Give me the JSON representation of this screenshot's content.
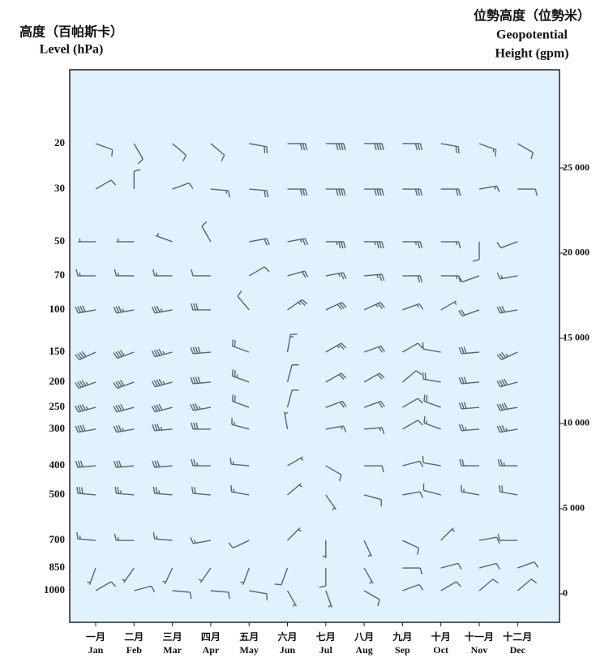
{
  "chart_data": {
    "type": "wind-barb",
    "left_title": [
      "高度（百帕斯卡）",
      "Level (hPa)"
    ],
    "right_title": [
      "位勢高度（位勢米）",
      "Geopotential",
      "Height (gpm)"
    ],
    "categories": [
      "Jan",
      "Feb",
      "Mar",
      "Apr",
      "May",
      "Jun",
      "Jul",
      "Aug",
      "Sep",
      "Oct",
      "Nov",
      "Dec"
    ],
    "categories_zh": [
      "一月",
      "二月",
      "三月",
      "四月",
      "五月",
      "六月",
      "七月",
      "八月",
      "九月",
      "十月",
      "十一月",
      "十二月"
    ],
    "ylim": [
      -1667,
      30762
    ],
    "y2ticks": [
      0,
      {
        "value": 5000,
        "label": "5 000"
      },
      {
        "value": 10000,
        "label": "10 000"
      },
      {
        "value": 15000,
        "label": "15 000"
      },
      {
        "value": 20000,
        "label": "20 000"
      },
      {
        "value": 25000,
        "label": "25 000"
      }
    ],
    "background": "#e0f2fd",
    "color": "#5a6670",
    "levels": [
      {
        "label": "20",
        "height": 26430,
        "dir": [
          110,
          150,
          130,
          130,
          100,
          90,
          90,
          90,
          90,
          100,
          110,
          120
        ],
        "speed": [
          10,
          10,
          10,
          10,
          20,
          30,
          40,
          40,
          30,
          20,
          15,
          10
        ]
      },
      {
        "label": "30",
        "height": 23760,
        "dir": [
          60,
          0,
          70,
          95,
          95,
          90,
          90,
          90,
          90,
          90,
          80,
          90
        ],
        "speed": [
          10,
          10,
          10,
          15,
          20,
          30,
          40,
          40,
          30,
          20,
          15,
          10
        ]
      },
      {
        "label": "50",
        "height": 20670,
        "dir": [
          270,
          270,
          290,
          330,
          80,
          80,
          90,
          90,
          90,
          90,
          180,
          250
        ],
        "speed": [
          5,
          5,
          5,
          10,
          20,
          25,
          35,
          35,
          25,
          15,
          10,
          10
        ]
      },
      {
        "label": "70",
        "height": 18670,
        "dir": [
          270,
          270,
          270,
          270,
          60,
          75,
          80,
          85,
          90,
          90,
          250,
          260
        ],
        "speed": [
          15,
          15,
          15,
          10,
          10,
          20,
          25,
          25,
          20,
          15,
          10,
          15
        ]
      },
      {
        "label": "100",
        "height": 16670,
        "dir": [
          260,
          260,
          260,
          270,
          320,
          55,
          65,
          65,
          70,
          60,
          250,
          260
        ],
        "speed": [
          40,
          35,
          35,
          30,
          10,
          25,
          30,
          25,
          15,
          5,
          20,
          30
        ]
      },
      {
        "label": "150",
        "height": 14190,
        "dir": [
          245,
          250,
          255,
          265,
          290,
          10,
          60,
          70,
          60,
          280,
          265,
          245
        ],
        "speed": [
          40,
          40,
          45,
          40,
          20,
          15,
          25,
          20,
          10,
          10,
          30,
          35
        ]
      },
      {
        "label": "200",
        "height": 12430,
        "dir": [
          250,
          250,
          255,
          265,
          290,
          15,
          60,
          60,
          50,
          280,
          265,
          255
        ],
        "speed": [
          45,
          40,
          45,
          40,
          25,
          10,
          20,
          20,
          10,
          20,
          30,
          40
        ]
      },
      {
        "label": "250",
        "height": 10950,
        "dir": [
          255,
          255,
          255,
          260,
          290,
          15,
          70,
          70,
          60,
          290,
          265,
          260
        ],
        "speed": [
          45,
          40,
          40,
          35,
          20,
          10,
          20,
          20,
          10,
          20,
          30,
          40
        ]
      },
      {
        "label": "300",
        "height": 9670,
        "dir": [
          260,
          260,
          265,
          270,
          285,
          350,
          80,
          85,
          60,
          290,
          265,
          260
        ],
        "speed": [
          40,
          35,
          35,
          30,
          15,
          5,
          15,
          15,
          10,
          15,
          25,
          35
        ]
      },
      {
        "label": "400",
        "height": 7520,
        "dir": [
          265,
          265,
          265,
          270,
          275,
          60,
          120,
          90,
          75,
          280,
          270,
          270
        ],
        "speed": [
          30,
          30,
          30,
          25,
          15,
          5,
          10,
          10,
          10,
          10,
          20,
          25
        ]
      },
      {
        "label": "500",
        "height": 5810,
        "dir": [
          275,
          275,
          275,
          275,
          280,
          50,
          145,
          105,
          80,
          285,
          280,
          280
        ],
        "speed": [
          30,
          25,
          25,
          20,
          15,
          5,
          5,
          10,
          10,
          10,
          15,
          20
        ]
      },
      {
        "label": "700",
        "height": 3140,
        "dir": [
          275,
          270,
          275,
          260,
          245,
          45,
          180,
          155,
          115,
          45,
          80,
          270
        ],
        "speed": [
          15,
          15,
          15,
          15,
          10,
          5,
          5,
          5,
          10,
          5,
          10,
          10
        ]
      },
      {
        "label": "850",
        "height": 1520,
        "dir": [
          200,
          215,
          205,
          215,
          200,
          200,
          180,
          150,
          90,
          75,
          75,
          70
        ],
        "speed": [
          5,
          5,
          5,
          5,
          5,
          10,
          10,
          5,
          10,
          10,
          10,
          10
        ]
      },
      {
        "label": "1000",
        "height": 190,
        "dir": [
          60,
          75,
          95,
          95,
          100,
          150,
          160,
          120,
          70,
          60,
          50,
          50
        ],
        "speed": [
          10,
          10,
          10,
          10,
          10,
          5,
          5,
          10,
          10,
          10,
          10,
          10
        ]
      }
    ]
  }
}
